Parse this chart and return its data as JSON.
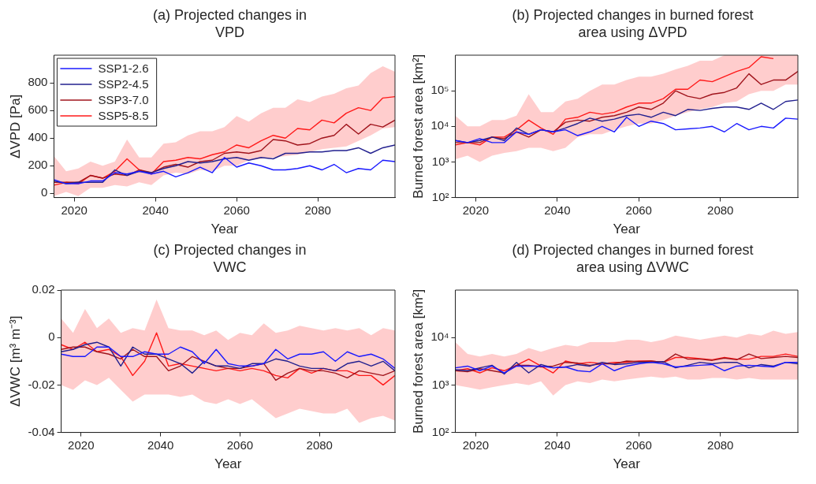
{
  "chart_data": [
    {
      "type": "line",
      "title": "(a) Projected changes in\nVPD",
      "xlabel": "Year",
      "ylabel": "ΔVPD [Pa]",
      "xlim": [
        2015,
        2099
      ],
      "xticks": [
        2020,
        2040,
        2060,
        2080
      ],
      "ylim": [
        -30,
        1000
      ],
      "yticks": [
        0,
        200,
        400,
        600,
        800
      ],
      "grid": false,
      "legend": "top left",
      "x": [
        2015,
        2018,
        2021,
        2024,
        2027,
        2030,
        2033,
        2036,
        2039,
        2042,
        2045,
        2048,
        2051,
        2054,
        2057,
        2060,
        2063,
        2066,
        2069,
        2072,
        2075,
        2078,
        2081,
        2084,
        2087,
        2090,
        2093,
        2096,
        2099
      ],
      "series": [
        {
          "name": "SSP1-2.6",
          "color": "#1a1aff",
          "values": [
            100,
            70,
            70,
            90,
            90,
            150,
            140,
            160,
            140,
            160,
            120,
            150,
            190,
            150,
            260,
            190,
            220,
            200,
            170,
            170,
            180,
            200,
            170,
            210,
            150,
            180,
            170,
            240,
            230
          ]
        },
        {
          "name": "SSP2-4.5",
          "color": "#22208f",
          "values": [
            90,
            70,
            80,
            80,
            80,
            170,
            130,
            160,
            150,
            180,
            200,
            230,
            220,
            230,
            250,
            260,
            240,
            260,
            250,
            290,
            290,
            300,
            300,
            310,
            310,
            330,
            290,
            330,
            350
          ]
        },
        {
          "name": "SSP3-7.0",
          "color": "#a0141c",
          "values": [
            80,
            80,
            80,
            130,
            110,
            140,
            130,
            170,
            150,
            190,
            210,
            190,
            230,
            240,
            290,
            300,
            290,
            310,
            390,
            380,
            350,
            360,
            400,
            420,
            500,
            430,
            500,
            480,
            530
          ]
        },
        {
          "name": "SSP5-8.5",
          "color": "#ff1a1a",
          "values": [
            60,
            80,
            70,
            130,
            110,
            160,
            250,
            170,
            140,
            230,
            240,
            260,
            250,
            280,
            300,
            350,
            330,
            380,
            420,
            400,
            470,
            460,
            530,
            510,
            580,
            620,
            600,
            690,
            700
          ],
          "lower": [
            -20,
            10,
            -20,
            40,
            40,
            60,
            50,
            80,
            60,
            130,
            150,
            140,
            170,
            160,
            200,
            200,
            240,
            250,
            260,
            270,
            280,
            300,
            320,
            330,
            340,
            380,
            420,
            470,
            480
          ],
          "upper": [
            270,
            160,
            180,
            230,
            200,
            230,
            390,
            260,
            260,
            360,
            370,
            420,
            450,
            450,
            480,
            560,
            520,
            580,
            620,
            620,
            680,
            660,
            700,
            720,
            760,
            780,
            870,
            920,
            880
          ]
        }
      ]
    },
    {
      "type": "line",
      "title": "(b) Projected changes in burned forest\narea using ΔVPD",
      "xlabel": "Year",
      "ylabel": "Burned forest area [km²]",
      "log": true,
      "xlim": [
        2015,
        2099
      ],
      "xticks": [
        2020,
        2040,
        2060,
        2080
      ],
      "ylim": [
        100,
        1000000
      ],
      "yticks": [
        {
          "value": 100,
          "label": "10²"
        },
        {
          "value": 1000,
          "label": "10³"
        },
        {
          "value": 10000,
          "label": "10⁴"
        },
        {
          "value": 100000,
          "label": "10⁵"
        }
      ],
      "grid": false,
      "x": [
        2015,
        2018,
        2021,
        2024,
        2027,
        2030,
        2033,
        2036,
        2039,
        2042,
        2045,
        2048,
        2051,
        2054,
        2057,
        2060,
        2063,
        2066,
        2069,
        2072,
        2075,
        2078,
        2081,
        2084,
        2087,
        2090,
        2093,
        2096,
        2099
      ],
      "series": [
        {
          "color": "#1a1aff",
          "values": [
            4000,
            3500,
            4500,
            3500,
            3500,
            7000,
            6000,
            8000,
            7000,
            8000,
            5500,
            7000,
            10000,
            7000,
            18000,
            10000,
            14000,
            12000,
            8000,
            8500,
            9000,
            10000,
            7000,
            12000,
            8000,
            10000,
            9000,
            17000,
            16000
          ]
        },
        {
          "color": "#22208f",
          "values": [
            4000,
            3500,
            4000,
            5000,
            4000,
            9000,
            6000,
            8000,
            7000,
            9000,
            12000,
            17000,
            14000,
            16000,
            20000,
            22000,
            18000,
            25000,
            20000,
            30000,
            28000,
            32000,
            35000,
            35000,
            30000,
            45000,
            30000,
            50000,
            55000
          ]
        },
        {
          "color": "#a0141c",
          "values": [
            3500,
            3500,
            3500,
            5000,
            4500,
            7000,
            5000,
            8000,
            7000,
            13000,
            15000,
            14000,
            18000,
            20000,
            25000,
            35000,
            30000,
            45000,
            100000,
            70000,
            60000,
            80000,
            90000,
            120000,
            300000,
            150000,
            200000,
            200000,
            350000
          ]
        },
        {
          "color": "#ff1a1a",
          "values": [
            3000,
            3500,
            3000,
            5000,
            5000,
            8000,
            15000,
            9000,
            6000,
            16000,
            18000,
            25000,
            22000,
            25000,
            35000,
            45000,
            45000,
            60000,
            110000,
            110000,
            200000,
            180000,
            250000,
            350000,
            450000,
            900000,
            800000,
            null,
            null
          ],
          "lower": [
            1200,
            1500,
            1000,
            1500,
            1800,
            2000,
            2500,
            2500,
            2000,
            2500,
            5000,
            6000,
            6000,
            8000,
            10000,
            12000,
            12000,
            15000,
            20000,
            25000,
            30000,
            35000,
            45000,
            50000,
            80000,
            100000,
            100000,
            150000,
            150000
          ],
          "upper": [
            20000,
            10000,
            10000,
            15000,
            15000,
            20000,
            80000,
            25000,
            25000,
            50000,
            60000,
            100000,
            150000,
            150000,
            200000,
            250000,
            250000,
            300000,
            400000,
            500000,
            700000,
            700000,
            1000000,
            1000000,
            1000000,
            1000000,
            1000000,
            1000000,
            1000000
          ]
        }
      ]
    },
    {
      "type": "line",
      "title": "(c) Projected changes in\nVWC",
      "xlabel": "Year",
      "ylabel": "ΔVWC [m³ m⁻³]",
      "xlim": [
        2015,
        2099
      ],
      "xticks": [
        2020,
        2040,
        2060,
        2080
      ],
      "ylim": [
        -0.04,
        0.02
      ],
      "yticks": [
        -0.04,
        -0.02,
        0,
        0.02
      ],
      "grid": false,
      "x": [
        2015,
        2018,
        2021,
        2024,
        2027,
        2030,
        2033,
        2036,
        2039,
        2042,
        2045,
        2048,
        2051,
        2054,
        2057,
        2060,
        2063,
        2066,
        2069,
        2072,
        2075,
        2078,
        2081,
        2084,
        2087,
        2090,
        2093,
        2096,
        2099
      ],
      "series": [
        {
          "color": "#1a1aff",
          "values": [
            -0.007,
            -0.008,
            -0.008,
            -0.004,
            -0.004,
            -0.008,
            -0.008,
            -0.006,
            -0.007,
            -0.007,
            -0.004,
            -0.006,
            -0.011,
            -0.005,
            -0.011,
            -0.012,
            -0.012,
            -0.011,
            -0.005,
            -0.009,
            -0.007,
            -0.007,
            -0.006,
            -0.01,
            -0.006,
            -0.008,
            -0.007,
            -0.009,
            -0.013
          ]
        },
        {
          "color": "#22208f",
          "values": [
            -0.006,
            -0.005,
            -0.003,
            -0.002,
            -0.004,
            -0.012,
            -0.004,
            -0.007,
            -0.007,
            -0.009,
            -0.011,
            -0.015,
            -0.01,
            -0.012,
            -0.012,
            -0.013,
            -0.011,
            -0.011,
            -0.009,
            -0.01,
            -0.012,
            -0.013,
            -0.013,
            -0.014,
            -0.011,
            -0.01,
            -0.012,
            -0.01,
            -0.014
          ]
        },
        {
          "color": "#a0141c",
          "values": [
            -0.005,
            -0.004,
            -0.004,
            -0.006,
            -0.007,
            -0.009,
            -0.005,
            -0.008,
            -0.008,
            -0.014,
            -0.012,
            -0.008,
            -0.01,
            -0.012,
            -0.013,
            -0.013,
            -0.012,
            -0.011,
            -0.018,
            -0.015,
            -0.013,
            -0.014,
            -0.014,
            -0.015,
            -0.017,
            -0.014,
            -0.015,
            -0.016,
            -0.014
          ]
        },
        {
          "color": "#ff1a1a",
          "values": [
            -0.003,
            -0.005,
            -0.002,
            -0.006,
            -0.005,
            -0.008,
            -0.016,
            -0.01,
            0.002,
            -0.012,
            -0.011,
            -0.012,
            -0.013,
            -0.014,
            -0.013,
            -0.014,
            -0.013,
            -0.014,
            -0.016,
            -0.017,
            -0.013,
            -0.015,
            -0.013,
            -0.014,
            -0.014,
            -0.016,
            -0.016,
            -0.02,
            -0.016
          ],
          "lower": [
            -0.02,
            -0.022,
            -0.018,
            -0.02,
            -0.017,
            -0.022,
            -0.027,
            -0.024,
            -0.024,
            -0.024,
            -0.025,
            -0.024,
            -0.027,
            -0.028,
            -0.026,
            -0.028,
            -0.026,
            -0.03,
            -0.034,
            -0.032,
            -0.03,
            -0.031,
            -0.032,
            -0.032,
            -0.03,
            -0.036,
            -0.034,
            -0.033,
            -0.035
          ],
          "upper": [
            0.008,
            0.002,
            0.012,
            0.004,
            0.008,
            0.002,
            0.004,
            0.003,
            0.016,
            0.004,
            0.003,
            0.003,
            0.001,
            0.003,
            -0.001,
            0.002,
            0.001,
            0.006,
            0.002,
            0.003,
            0.005,
            0.004,
            0.003,
            0.004,
            0.003,
            0.004,
            0.001,
            0.004,
            0.003
          ]
        }
      ]
    },
    {
      "type": "line",
      "title": "(d) Projected changes in burned forest\narea using ΔVWC",
      "xlabel": "Year",
      "ylabel": "Burned forest area [km²]",
      "log": true,
      "xlim": [
        2015,
        2099
      ],
      "xticks": [
        2020,
        2040,
        2060,
        2080
      ],
      "ylim": [
        100,
        100000
      ],
      "yticks": [
        {
          "value": 100,
          "label": "10²"
        },
        {
          "value": 1000,
          "label": "10³"
        },
        {
          "value": 10000,
          "label": "10⁴"
        }
      ],
      "grid": false,
      "x": [
        2015,
        2018,
        2021,
        2024,
        2027,
        2030,
        2033,
        2036,
        2039,
        2042,
        2045,
        2048,
        2051,
        2054,
        2057,
        2060,
        2063,
        2066,
        2069,
        2072,
        2075,
        2078,
        2081,
        2084,
        2087,
        2090,
        2093,
        2096,
        2099
      ],
      "series": [
        {
          "color": "#1a1aff",
          "values": [
            2300,
            2500,
            2000,
            2500,
            1800,
            2500,
            2500,
            2500,
            2300,
            2400,
            2000,
            1900,
            2800,
            2000,
            2500,
            2800,
            3000,
            2800,
            2400,
            2500,
            2600,
            2700,
            2000,
            2500,
            2600,
            2500,
            2400,
            3000,
            3000
          ]
        },
        {
          "color": "#22208f",
          "values": [
            2100,
            2000,
            2300,
            2600,
            1700,
            3000,
            1800,
            2700,
            2300,
            2400,
            2700,
            2500,
            3000,
            2700,
            2800,
            3000,
            3000,
            3100,
            2300,
            2600,
            3000,
            2800,
            3000,
            3000,
            2300,
            2700,
            2500,
            3000,
            2800
          ]
        },
        {
          "color": "#a0141c",
          "values": [
            2000,
            1900,
            2200,
            2000,
            1800,
            2600,
            2600,
            2400,
            2500,
            3000,
            2900,
            2600,
            2800,
            2800,
            3200,
            3100,
            3200,
            3000,
            4500,
            3500,
            3500,
            3300,
            3700,
            3400,
            4500,
            3600,
            3800,
            4000,
            3800
          ]
        },
        {
          "color": "#ff1a1a",
          "values": [
            2000,
            2200,
            1800,
            2300,
            2000,
            2600,
            3500,
            2500,
            1800,
            3200,
            2800,
            3000,
            2800,
            3000,
            3000,
            3200,
            3200,
            3000,
            3800,
            3800,
            3600,
            3400,
            3800,
            3500,
            3500,
            4000,
            4000,
            4500,
            4000
          ],
          "lower": [
            1000,
            900,
            800,
            900,
            1000,
            1100,
            1000,
            1200,
            600,
            1000,
            1200,
            1100,
            1300,
            1200,
            1300,
            1400,
            1500,
            1400,
            1500,
            1300,
            1300,
            1400,
            1400,
            1300,
            1400,
            1300,
            1300,
            1300,
            1300
          ],
          "upper": [
            8000,
            4500,
            4000,
            4500,
            4000,
            4500,
            6000,
            5000,
            6000,
            7000,
            6500,
            8000,
            8000,
            8000,
            9000,
            9000,
            8000,
            9000,
            11000,
            10000,
            9000,
            10000,
            11000,
            10000,
            12000,
            11000,
            14000,
            12000,
            13000
          ]
        }
      ]
    }
  ]
}
